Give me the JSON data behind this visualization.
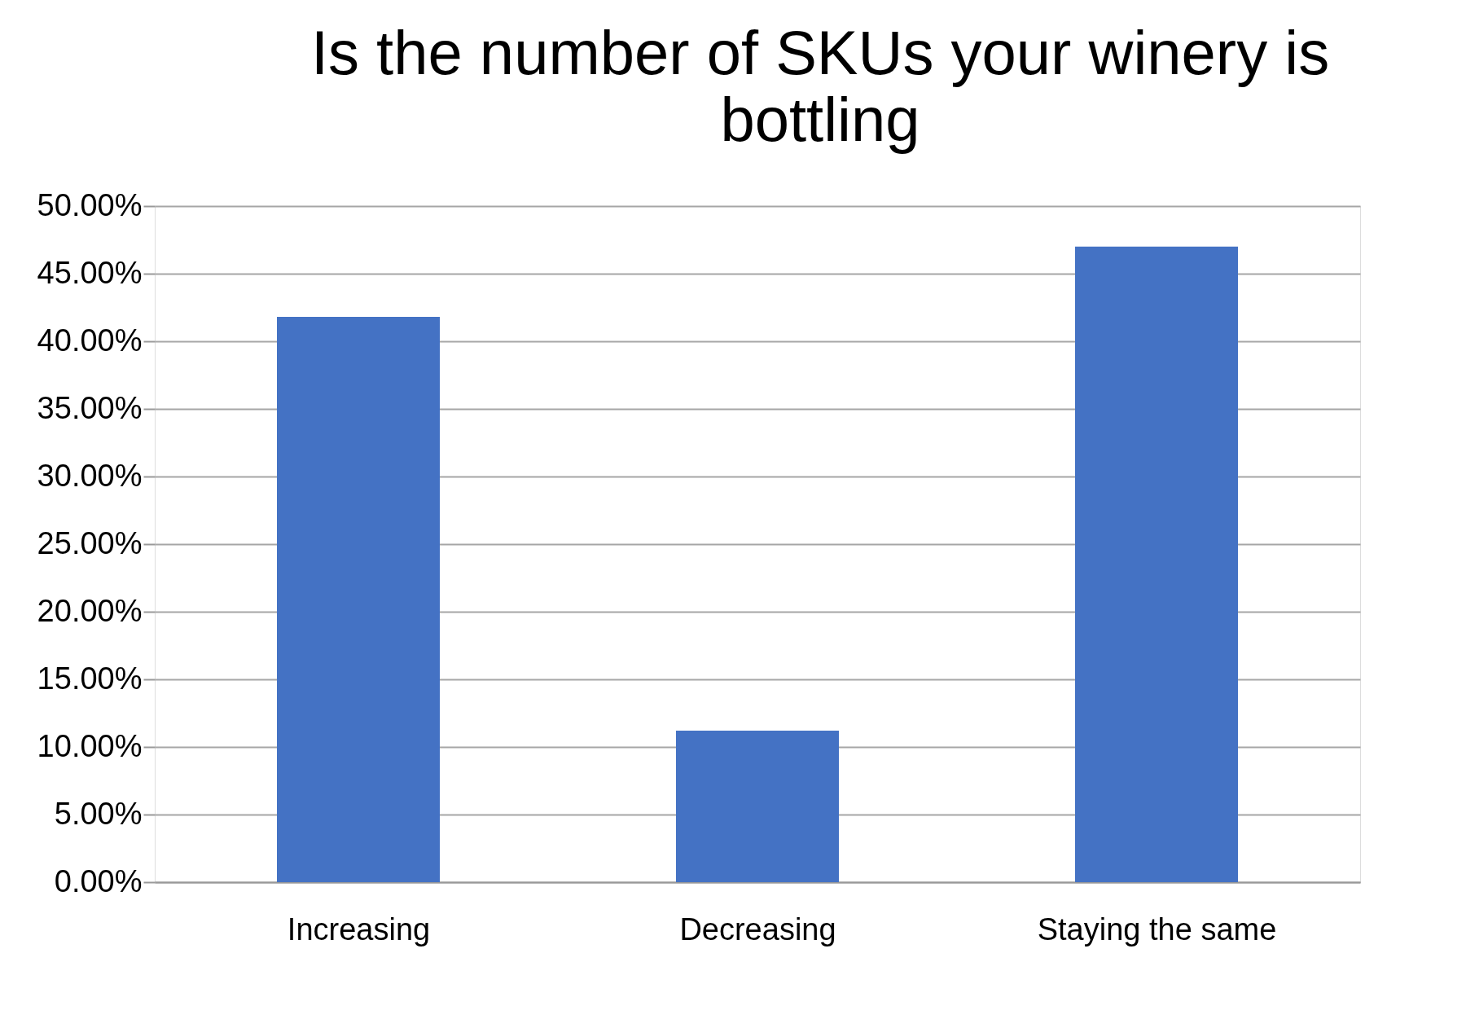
{
  "chart_data": {
    "type": "bar",
    "title": "Is the number of SKUs your winery is bottling",
    "categories": [
      "Increasing",
      "Decreasing",
      "Staying the same"
    ],
    "values": [
      41.8,
      11.2,
      47.0
    ],
    "color": "#4472c4",
    "ylim": [
      0,
      50
    ],
    "yticks": [
      {
        "value": 0,
        "label": "0.00%"
      },
      {
        "value": 5,
        "label": "5.00%"
      },
      {
        "value": 10,
        "label": "10.00%"
      },
      {
        "value": 15,
        "label": "15.00%"
      },
      {
        "value": 20,
        "label": "20.00%"
      },
      {
        "value": 25,
        "label": "25.00%"
      },
      {
        "value": 30,
        "label": "30.00%"
      },
      {
        "value": 35,
        "label": "35.00%"
      },
      {
        "value": 40,
        "label": "40.00%"
      },
      {
        "value": 45,
        "label": "45.00%"
      },
      {
        "value": 50,
        "label": "50.00%"
      }
    ],
    "grid": "y"
  }
}
